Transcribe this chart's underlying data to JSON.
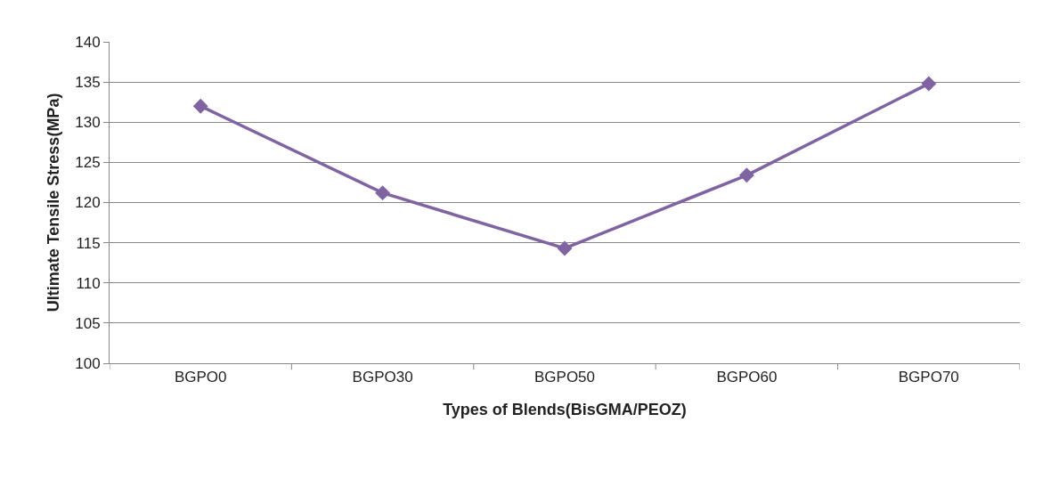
{
  "chart_data": {
    "type": "line",
    "xlabel": "Types of Blends(BisGMA/PEOZ)",
    "ylabel": "Ultimate Tensile Stress(MPa)",
    "categories": [
      "BGPO0",
      "BGPO30",
      "BGPO50",
      "BGPO60",
      "BGPO70"
    ],
    "series": [
      {
        "color": "#8064a2",
        "values": [
          132,
          121.2,
          114.3,
          123.4,
          134.8
        ]
      }
    ],
    "ylim": [
      100,
      140
    ],
    "yticks": [
      100,
      105,
      110,
      115,
      120,
      125,
      130,
      135,
      140
    ],
    "grid": "y",
    "marker": "diamond",
    "line_style": "solid"
  }
}
